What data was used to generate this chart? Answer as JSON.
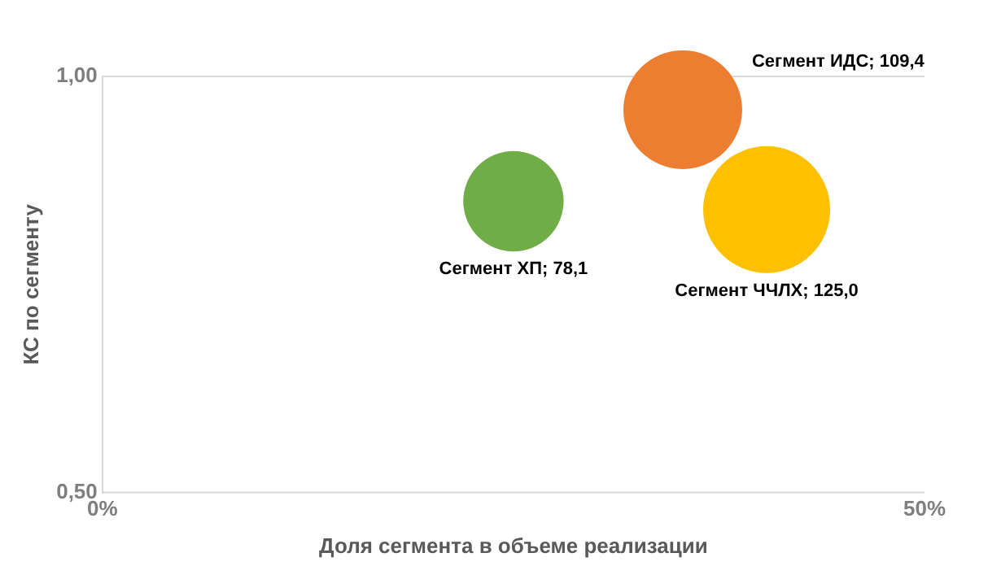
{
  "chart_data": {
    "type": "bubble",
    "xlabel": "Доля сегмента в объеме реализации",
    "ylabel": "КС по сегменту",
    "x": [
      25.0,
      35.3,
      40.4
    ],
    "values": [
      0.85,
      0.96,
      0.84
    ],
    "sizes": [
      78.1,
      109.4,
      125.0
    ],
    "colors": [
      "#70ad47",
      "#ed7d31",
      "#ffc000"
    ],
    "value_labels": [
      "Сегмент ХП; 78,1",
      "Сегмент ИДС; 109,4",
      "Сегмент ЧЧЛХ; 125,0"
    ],
    "xlim": [
      0,
      50
    ],
    "ylim": [
      0.5,
      1.0
    ],
    "xticks": [
      {
        "value": 0,
        "label": "0%"
      },
      {
        "value": 50,
        "label": "50%"
      }
    ],
    "yticks": [
      {
        "value": 0.5,
        "label": "0,50"
      },
      {
        "value": 1.0,
        "label": "1,00"
      }
    ],
    "legend": false
  }
}
